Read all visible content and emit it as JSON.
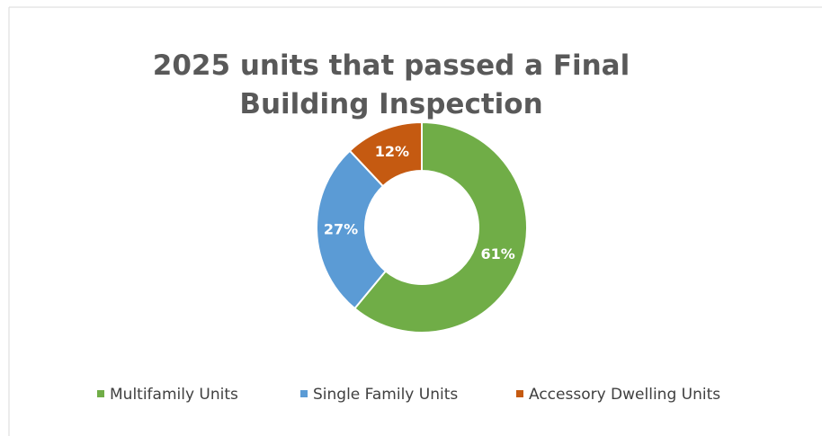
{
  "chart_data": {
    "type": "donut",
    "title": "2025 units that passed a Final Building Inspection",
    "categories": [
      "Multifamily Units",
      "Single Family Units",
      "Accessory Dwelling Units"
    ],
    "values": [
      61,
      27,
      12
    ],
    "value_labels": [
      "61%",
      "27%",
      "12%"
    ],
    "colors": [
      "#70ad47",
      "#5b9bd5",
      "#c55a11"
    ],
    "legend": "bottom"
  }
}
